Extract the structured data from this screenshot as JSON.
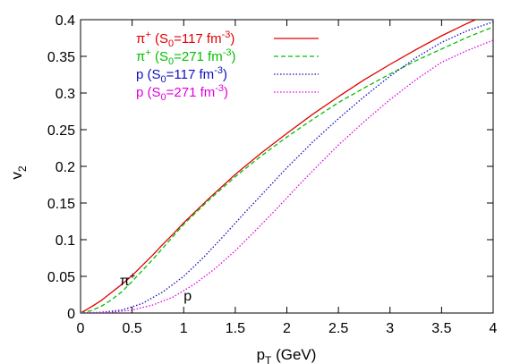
{
  "chart_data": {
    "type": "line",
    "xlabel": {
      "main": "p",
      "sub": "T",
      "rest": " (GeV)"
    },
    "ylabel": {
      "main": "v",
      "sub": "2"
    },
    "xlim": [
      0,
      4
    ],
    "ylim": [
      0,
      0.4
    ],
    "xticks": [
      "0",
      "0.5",
      "1",
      "1.5",
      "2",
      "2.5",
      "3",
      "3.5",
      "4"
    ],
    "yticks": [
      "0",
      "0.05",
      "0.1",
      "0.15",
      "0.2",
      "0.25",
      "0.3",
      "0.35",
      "0.4"
    ],
    "grid": false,
    "legend_position": "top-left",
    "series": [
      {
        "particle": "π",
        "charge": "+",
        "s0": "117",
        "color": "#e00000",
        "dash": "solid",
        "points": [
          [
            0,
            0
          ],
          [
            0.1,
            0.008
          ],
          [
            0.2,
            0.017
          ],
          [
            0.3,
            0.028
          ],
          [
            0.4,
            0.039
          ],
          [
            0.5,
            0.051
          ],
          [
            0.6,
            0.065
          ],
          [
            0.7,
            0.079
          ],
          [
            0.8,
            0.094
          ],
          [
            0.9,
            0.108
          ],
          [
            1.0,
            0.123
          ],
          [
            1.25,
            0.157
          ],
          [
            1.5,
            0.189
          ],
          [
            1.75,
            0.218
          ],
          [
            2.0,
            0.245
          ],
          [
            2.25,
            0.271
          ],
          [
            2.5,
            0.295
          ],
          [
            2.75,
            0.318
          ],
          [
            3.0,
            0.339
          ],
          [
            3.25,
            0.359
          ],
          [
            3.5,
            0.378
          ],
          [
            3.75,
            0.395
          ],
          [
            3.83,
            0.4
          ]
        ]
      },
      {
        "particle": "π",
        "charge": "+",
        "s0": "271",
        "color": "#00c000",
        "dash": "dashed",
        "points": [
          [
            0,
            0
          ],
          [
            0.1,
            0.003
          ],
          [
            0.2,
            0.009
          ],
          [
            0.3,
            0.018
          ],
          [
            0.4,
            0.029
          ],
          [
            0.5,
            0.043
          ],
          [
            0.6,
            0.058
          ],
          [
            0.7,
            0.073
          ],
          [
            0.8,
            0.089
          ],
          [
            0.9,
            0.105
          ],
          [
            1.0,
            0.121
          ],
          [
            1.25,
            0.155
          ],
          [
            1.5,
            0.186
          ],
          [
            1.75,
            0.214
          ],
          [
            2.0,
            0.24
          ],
          [
            2.25,
            0.264
          ],
          [
            2.5,
            0.287
          ],
          [
            2.75,
            0.307
          ],
          [
            3.0,
            0.326
          ],
          [
            3.25,
            0.344
          ],
          [
            3.5,
            0.36
          ],
          [
            3.75,
            0.376
          ],
          [
            4.0,
            0.39
          ]
        ]
      },
      {
        "particle": "p",
        "charge": "",
        "s0": "117",
        "color": "#1010c0",
        "dash": "dotted",
        "points": [
          [
            0,
            0
          ],
          [
            0.2,
            0.001
          ],
          [
            0.4,
            0.004
          ],
          [
            0.6,
            0.013
          ],
          [
            0.8,
            0.029
          ],
          [
            1.0,
            0.05
          ],
          [
            1.2,
            0.077
          ],
          [
            1.4,
            0.107
          ],
          [
            1.6,
            0.138
          ],
          [
            1.8,
            0.168
          ],
          [
            2.0,
            0.198
          ],
          [
            2.25,
            0.233
          ],
          [
            2.5,
            0.265
          ],
          [
            2.75,
            0.295
          ],
          [
            3.0,
            0.323
          ],
          [
            3.25,
            0.348
          ],
          [
            3.5,
            0.369
          ],
          [
            3.75,
            0.385
          ],
          [
            4.0,
            0.397
          ]
        ]
      },
      {
        "particle": "p",
        "charge": "",
        "s0": "271",
        "color": "#e000e0",
        "dash": "dotted",
        "points": [
          [
            0,
            0
          ],
          [
            0.3,
            0.001
          ],
          [
            0.5,
            0.004
          ],
          [
            0.7,
            0.011
          ],
          [
            0.9,
            0.022
          ],
          [
            1.1,
            0.039
          ],
          [
            1.3,
            0.06
          ],
          [
            1.5,
            0.085
          ],
          [
            1.7,
            0.113
          ],
          [
            1.9,
            0.142
          ],
          [
            2.1,
            0.172
          ],
          [
            2.3,
            0.201
          ],
          [
            2.5,
            0.229
          ],
          [
            2.75,
            0.261
          ],
          [
            3.0,
            0.291
          ],
          [
            3.25,
            0.318
          ],
          [
            3.5,
            0.342
          ],
          [
            3.75,
            0.358
          ],
          [
            4.0,
            0.372
          ]
        ]
      }
    ],
    "legend_template": {
      "open": "(S",
      "sub": "0",
      "eq": "=",
      "unit": " fm",
      "exp": "-3",
      "close": ")"
    },
    "annotations": [
      {
        "main": "π",
        "sup": "+",
        "x": 0.38,
        "y": 0.038
      },
      {
        "main": "p",
        "sup": "",
        "x": 1.0,
        "y": 0.017
      }
    ]
  }
}
